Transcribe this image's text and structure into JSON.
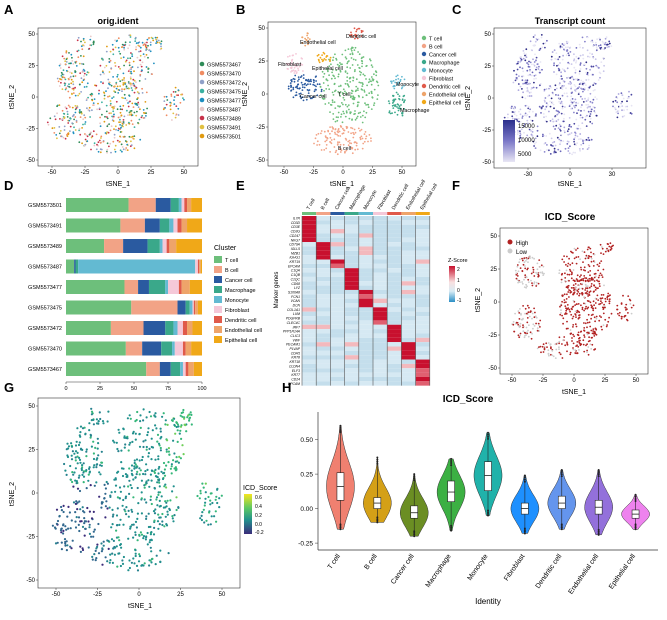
{
  "colors": {
    "samples": [
      "#2e8b57",
      "#f08c62",
      "#8fa0c8",
      "#3ab0a0",
      "#1f8fc0",
      "#e8c8c8",
      "#c8324a",
      "#e0c040",
      "#e09a10"
    ],
    "cells": [
      "#6dbf7b",
      "#f2a386",
      "#2a5aa0",
      "#3aa88a",
      "#63bad2",
      "#f5c8d8",
      "#e05a4a",
      "#eea46a",
      "#f0a818"
    ],
    "icd_high": "#b22222",
    "icd_low": "#cccccc"
  },
  "panels": {
    "A": {
      "label": "A",
      "title": "orig.ident",
      "xlabel": "tSNE_1",
      "ylabel": "tSNE_2",
      "xticks": [
        "-50",
        "-25",
        "0",
        "25",
        "50"
      ],
      "yticks": [
        "50",
        "25",
        "0",
        "-25",
        "-50"
      ],
      "legend": [
        "GSM5573467",
        "GSM5573470",
        "GSM5573472",
        "GSM5573475",
        "GSM5573477",
        "GSM5573487",
        "GSM5573489",
        "GSM5573491",
        "GSM5573501"
      ]
    },
    "B": {
      "label": "B",
      "xlabel": "tSNE_1",
      "ylabel": "tSNE_2",
      "xticks": [
        "-50",
        "-25",
        "0",
        "25",
        "50"
      ],
      "yticks": [
        "50",
        "25",
        "0",
        "-25",
        "-50"
      ],
      "cluster_labels": [
        "Endothelial cell",
        "Dendritic cell",
        "Fibroblast",
        "Epithelial cell",
        "Cancer cell",
        "T cell",
        "Monocyte",
        "Macrophage",
        "B cell"
      ],
      "legend": [
        "T cell",
        "B cell",
        "Cancer cell",
        "Macrophage",
        "Monocyte",
        "Fibroblast",
        "Dendritic cell",
        "Endothelial cell",
        "Epithelial cell"
      ]
    },
    "C": {
      "label": "C",
      "title": "Transcript count",
      "xlabel": "tSNE_1",
      "ylabel": "tSNE_2",
      "xticks": [
        "-30",
        "0",
        "30"
      ],
      "yticks": [
        "50",
        "25",
        "0",
        "-25",
        "-50"
      ],
      "colorbar": [
        "15000",
        "10000",
        "5000"
      ]
    },
    "D": {
      "label": "D",
      "legend_title": "Cluster",
      "xticks": [
        "0",
        "25",
        "50",
        "75",
        "100"
      ]
    },
    "E": {
      "label": "E",
      "ylabel": "Marker genes",
      "legend_title": "Z-Score",
      "legend_ticks": [
        "2",
        "1",
        "0",
        "-1"
      ],
      "columns": [
        "T cell",
        "B cell",
        "Cancer cell",
        "Macrophage",
        "Monocyte",
        "Fibroblast",
        "Dendritic cell",
        "Endothelial cell",
        "Epithelial cell"
      ],
      "genes": [
        "IL7R",
        "CD3D",
        "CD3E",
        "CD3G",
        "CD247",
        "NKG7",
        "CD79A",
        "IGLL5",
        "MZB1",
        "IGHG1",
        "KRT19",
        "EPCAM",
        "C1QA",
        "C1QB",
        "C1QC",
        "CD68",
        "LYZ",
        "S100A8",
        "FCN1",
        "VCAN",
        "DCN",
        "COL1A1",
        "LUM",
        "PDGFRB",
        "CLEC4C",
        "IRF7",
        "PPP1R14A",
        "CLIC3",
        "VWF",
        "PECAM1",
        "PLVAP",
        "CDH5",
        "KRT8",
        "KRT18",
        "CLDN4",
        "ELF3",
        "KRT7",
        "CD24",
        "EPCAM"
      ]
    },
    "F": {
      "label": "F",
      "title": "ICD_Score",
      "xlabel": "tSNE_1",
      "ylabel": "tSNE_2",
      "xticks": [
        "-50",
        "-25",
        "0",
        "25",
        "50"
      ],
      "yticks": [
        "50",
        "25",
        "0",
        "-25",
        "-50"
      ],
      "legend": [
        "High",
        "Low"
      ]
    },
    "G": {
      "label": "G",
      "xlabel": "tSNE_1",
      "ylabel": "tSNE_2",
      "xticks": [
        "-50",
        "-25",
        "0",
        "25",
        "50"
      ],
      "yticks": [
        "50",
        "25",
        "0",
        "-25",
        "-50"
      ],
      "legend_title": "ICD_Score",
      "colorbar": [
        "0.6",
        "0.4",
        "0.2",
        "0.0",
        "-0.2"
      ]
    },
    "H": {
      "label": "H",
      "title": "ICD_Score",
      "xlabel": "Identity",
      "yticks": [
        "0.50",
        "0.25",
        "0.00",
        "-0.25"
      ]
    }
  },
  "chart_data": [
    {
      "panel": "D",
      "type": "bar",
      "orientation": "horizontal",
      "stacked": true,
      "categories": [
        "GSM5573501",
        "GSM5573491",
        "GSM5573489",
        "GSM5573487",
        "GSM5573477",
        "GSM5573475",
        "GSM5573472",
        "GSM5573470",
        "GSM5573467"
      ],
      "xlim": [
        0,
        100
      ],
      "series": [
        {
          "name": "T cell",
          "values": [
            46,
            40,
            28,
            6,
            43,
            48,
            33,
            44,
            59
          ]
        },
        {
          "name": "B cell",
          "values": [
            20,
            18,
            14,
            0,
            10,
            34,
            24,
            12,
            10
          ]
        },
        {
          "name": "Cancer cell",
          "values": [
            11,
            11,
            18,
            1,
            8,
            6,
            16,
            14,
            8
          ]
        },
        {
          "name": "Macrophage",
          "values": [
            6,
            7,
            9,
            2,
            12,
            3,
            6,
            8,
            7
          ]
        },
        {
          "name": "Monocyte",
          "values": [
            2,
            3,
            2,
            86,
            2,
            2,
            3,
            2,
            2
          ]
        },
        {
          "name": "Fibroblast",
          "values": [
            2,
            3,
            3,
            2,
            8,
            1,
            4,
            6,
            2
          ]
        },
        {
          "name": "Dendritic cell",
          "values": [
            2,
            3,
            2,
            1,
            2,
            1,
            3,
            2,
            2
          ]
        },
        {
          "name": "Endothelial cell",
          "values": [
            3,
            4,
            5,
            1,
            6,
            2,
            4,
            4,
            4
          ]
        },
        {
          "name": "Epithelial cell",
          "values": [
            8,
            11,
            19,
            1,
            9,
            3,
            7,
            8,
            6
          ]
        }
      ]
    },
    {
      "panel": "E",
      "type": "heatmap",
      "zlim": [
        -1,
        2
      ],
      "row_groups": [
        6,
        4,
        2,
        5,
        4,
        4,
        4,
        4,
        6
      ],
      "note": "block-diagonal high z-scores per cell type"
    },
    {
      "panel": "H",
      "type": "violin",
      "categories": [
        "T cell",
        "B cell",
        "Cancer cell",
        "Macrophage",
        "Monocyte",
        "Fibroblast",
        "Dendritic cell",
        "Endothelial cell",
        "Epithelial cell"
      ],
      "ylim": [
        -0.3,
        0.7
      ],
      "median": [
        0.16,
        0.04,
        -0.03,
        0.12,
        0.24,
        0.0,
        0.04,
        0.01,
        -0.04
      ],
      "q1": [
        0.06,
        0.0,
        -0.07,
        0.05,
        0.13,
        -0.04,
        0.0,
        -0.04,
        -0.07
      ],
      "q3": [
        0.26,
        0.08,
        0.02,
        0.2,
        0.34,
        0.04,
        0.09,
        0.06,
        -0.01
      ],
      "min": [
        -0.15,
        -0.1,
        -0.2,
        -0.16,
        -0.05,
        -0.18,
        -0.15,
        -0.19,
        -0.15
      ],
      "max": [
        0.6,
        0.37,
        0.25,
        0.36,
        0.55,
        0.24,
        0.28,
        0.28,
        0.1
      ],
      "colors": [
        "#f08070",
        "#d4a017",
        "#6b8e23",
        "#3cb043",
        "#20b2aa",
        "#1e90ff",
        "#6495ed",
        "#9370db",
        "#ee82ee"
      ]
    }
  ]
}
